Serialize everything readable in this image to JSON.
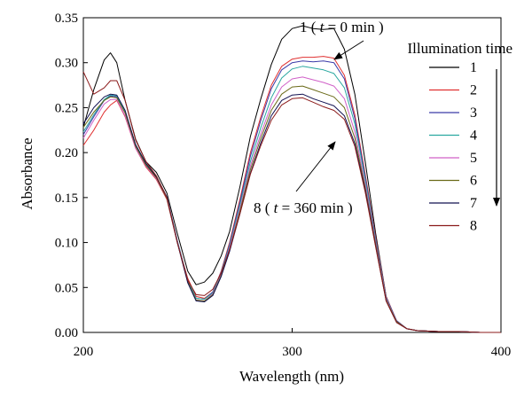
{
  "chart_data": {
    "type": "line",
    "xlabel": "Wavelength (nm)",
    "ylabel": "Absorbance",
    "xlim": [
      200,
      400
    ],
    "ylim": [
      0,
      0.35
    ],
    "x_ticks": [
      "200",
      "300",
      "400"
    ],
    "y_ticks": [
      "0.00",
      "0.05",
      "0.10",
      "0.15",
      "0.20",
      "0.25",
      "0.30",
      "0.35"
    ],
    "grid": false,
    "legend": {
      "title": "Illumination time",
      "placement": "top-right"
    },
    "annotations": {
      "top": {
        "num": "1",
        "var": "t",
        "eq": " = 0 min"
      },
      "bottom": {
        "num": "8",
        "var": "t",
        "eq": " = 360 min"
      }
    },
    "x": [
      200,
      205,
      210,
      213,
      216,
      220,
      225,
      230,
      235,
      240,
      245,
      250,
      254,
      258,
      262,
      266,
      270,
      275,
      280,
      285,
      290,
      295,
      300,
      305,
      310,
      315,
      320,
      325,
      330,
      335,
      340,
      345,
      350,
      355,
      360,
      370,
      380,
      390,
      400
    ],
    "series": [
      {
        "name": "1",
        "color": "#000000",
        "values": [
          0.228,
          0.27,
          0.303,
          0.311,
          0.3,
          0.258,
          0.215,
          0.19,
          0.178,
          0.155,
          0.11,
          0.068,
          0.053,
          0.056,
          0.066,
          0.085,
          0.112,
          0.162,
          0.218,
          0.26,
          0.298,
          0.326,
          0.338,
          0.341,
          0.338,
          0.337,
          0.338,
          0.315,
          0.265,
          0.19,
          0.11,
          0.04,
          0.012,
          0.004,
          0.002,
          0.001,
          0.001,
          0.0,
          0.0
        ]
      },
      {
        "name": "2",
        "color": "#e03030",
        "values": [
          0.208,
          0.225,
          0.245,
          0.253,
          0.258,
          0.24,
          0.205,
          0.184,
          0.17,
          0.148,
          0.1,
          0.06,
          0.04,
          0.038,
          0.045,
          0.068,
          0.1,
          0.148,
          0.2,
          0.24,
          0.275,
          0.296,
          0.304,
          0.306,
          0.306,
          0.307,
          0.305,
          0.286,
          0.242,
          0.176,
          0.106,
          0.04,
          0.013,
          0.004,
          0.002,
          0.001,
          0.001,
          0.0,
          0.0
        ]
      },
      {
        "name": "3",
        "color": "#3a3aa8",
        "values": [
          0.22,
          0.24,
          0.258,
          0.263,
          0.262,
          0.245,
          0.208,
          0.187,
          0.173,
          0.151,
          0.102,
          0.058,
          0.038,
          0.037,
          0.045,
          0.067,
          0.098,
          0.145,
          0.196,
          0.236,
          0.271,
          0.292,
          0.3,
          0.302,
          0.301,
          0.302,
          0.3,
          0.282,
          0.238,
          0.173,
          0.104,
          0.039,
          0.013,
          0.004,
          0.002,
          0.001,
          0.001,
          0.0,
          0.0
        ]
      },
      {
        "name": "4",
        "color": "#2aa8a0",
        "values": [
          0.223,
          0.242,
          0.259,
          0.264,
          0.263,
          0.245,
          0.208,
          0.187,
          0.173,
          0.15,
          0.101,
          0.058,
          0.038,
          0.037,
          0.044,
          0.066,
          0.096,
          0.142,
          0.19,
          0.228,
          0.261,
          0.283,
          0.293,
          0.296,
          0.294,
          0.292,
          0.288,
          0.272,
          0.232,
          0.17,
          0.102,
          0.038,
          0.012,
          0.004,
          0.002,
          0.001,
          0.001,
          0.0,
          0.0
        ]
      },
      {
        "name": "5",
        "color": "#d060c8",
        "values": [
          0.216,
          0.236,
          0.254,
          0.259,
          0.259,
          0.241,
          0.205,
          0.185,
          0.171,
          0.149,
          0.1,
          0.056,
          0.036,
          0.035,
          0.043,
          0.064,
          0.094,
          0.138,
          0.185,
          0.221,
          0.253,
          0.273,
          0.282,
          0.284,
          0.281,
          0.278,
          0.274,
          0.26,
          0.223,
          0.165,
          0.1,
          0.037,
          0.012,
          0.004,
          0.002,
          0.001,
          0.001,
          0.0,
          0.0
        ]
      },
      {
        "name": "6",
        "color": "#6a6a18",
        "values": [
          0.228,
          0.245,
          0.258,
          0.262,
          0.261,
          0.244,
          0.207,
          0.186,
          0.172,
          0.149,
          0.1,
          0.056,
          0.036,
          0.035,
          0.042,
          0.063,
          0.092,
          0.135,
          0.181,
          0.216,
          0.247,
          0.265,
          0.273,
          0.274,
          0.27,
          0.266,
          0.262,
          0.25,
          0.216,
          0.161,
          0.098,
          0.036,
          0.012,
          0.004,
          0.002,
          0.001,
          0.001,
          0.0,
          0.0
        ]
      },
      {
        "name": "7",
        "color": "#101050",
        "values": [
          0.232,
          0.25,
          0.262,
          0.265,
          0.264,
          0.247,
          0.209,
          0.188,
          0.173,
          0.15,
          0.1,
          0.055,
          0.035,
          0.034,
          0.041,
          0.062,
          0.09,
          0.132,
          0.177,
          0.211,
          0.241,
          0.258,
          0.264,
          0.265,
          0.26,
          0.256,
          0.252,
          0.241,
          0.21,
          0.158,
          0.096,
          0.035,
          0.011,
          0.004,
          0.002,
          0.001,
          0.001,
          0.0,
          0.0
        ]
      },
      {
        "name": "8",
        "color": "#8b1a1a",
        "values": [
          0.29,
          0.265,
          0.272,
          0.28,
          0.28,
          0.258,
          0.214,
          0.19,
          0.174,
          0.15,
          0.1,
          0.058,
          0.042,
          0.041,
          0.048,
          0.066,
          0.092,
          0.132,
          0.176,
          0.208,
          0.236,
          0.253,
          0.26,
          0.261,
          0.256,
          0.251,
          0.247,
          0.237,
          0.207,
          0.156,
          0.095,
          0.035,
          0.011,
          0.004,
          0.002,
          0.001,
          0.001,
          0.0,
          0.0
        ]
      }
    ]
  }
}
